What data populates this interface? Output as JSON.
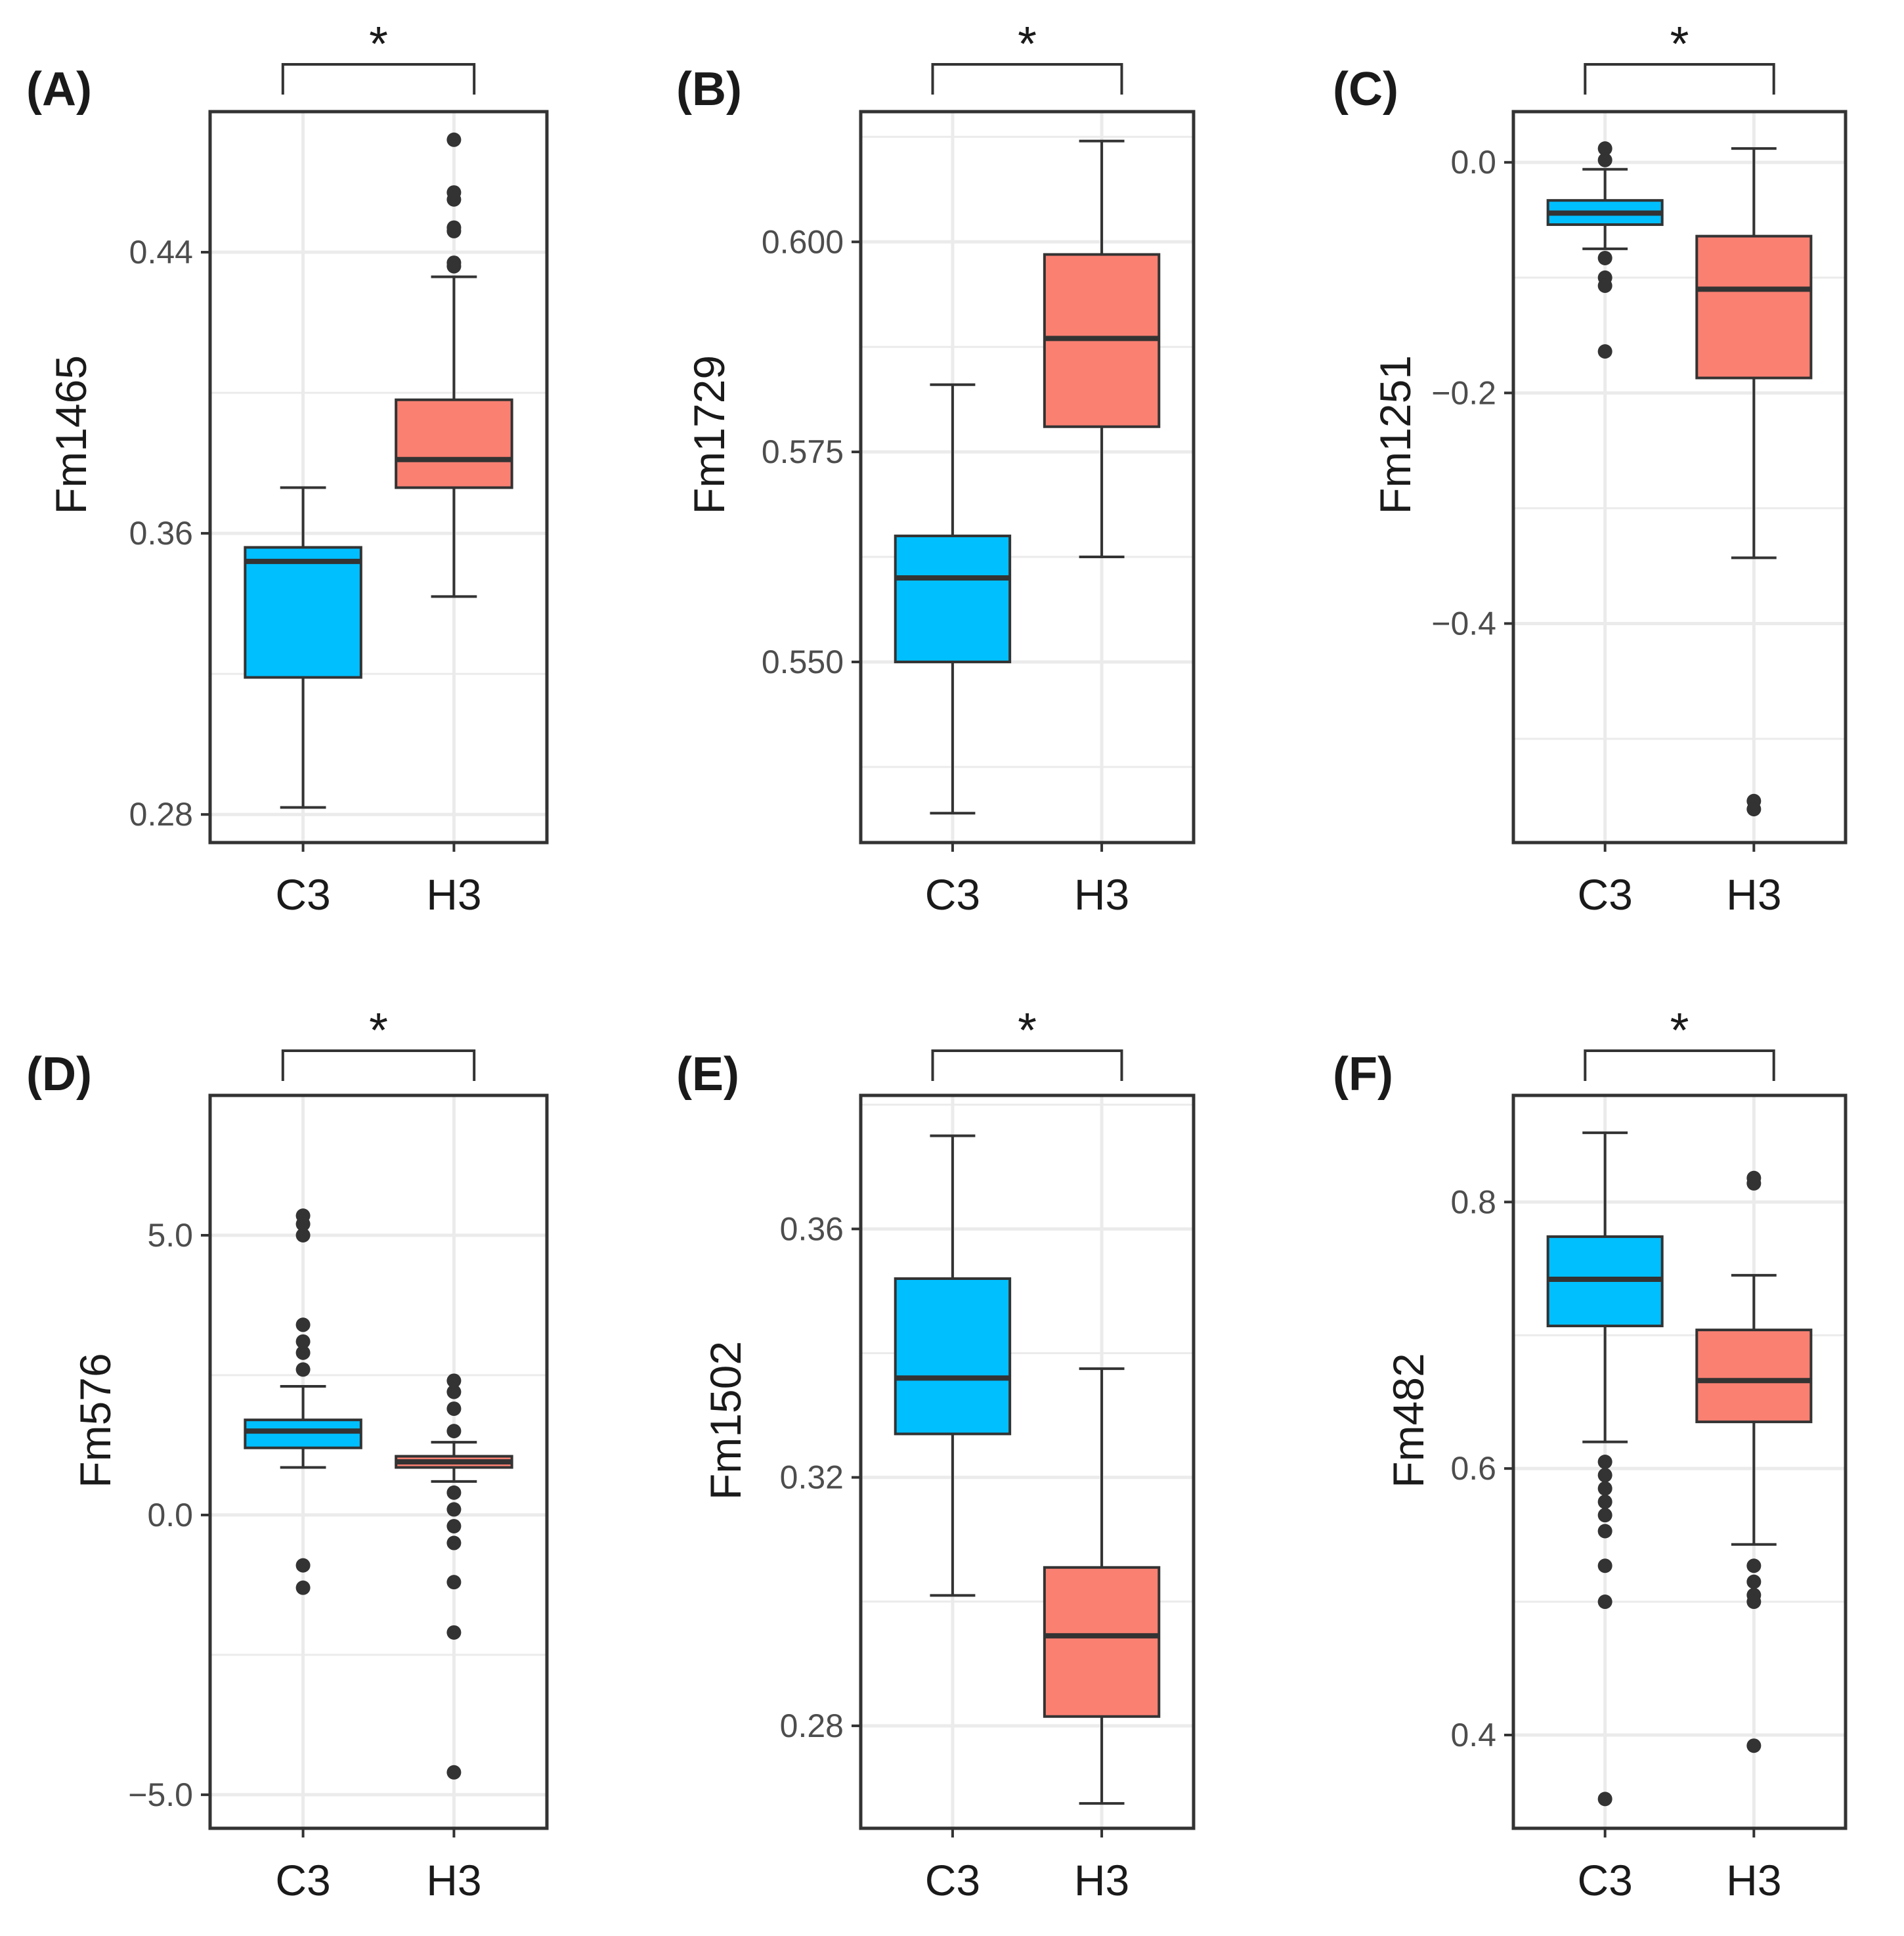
{
  "chart_data": [
    {
      "type": "box",
      "panel": "(A)",
      "ylabel": "Fm1465",
      "categories": [
        "C3",
        "H3"
      ],
      "ylim": [
        0.272,
        0.48
      ],
      "ticks": [
        0.28,
        0.36,
        0.44
      ],
      "tick_labels": [
        "0.28",
        "0.36",
        "0.44"
      ],
      "significance": "*",
      "boxes": [
        {
          "name": "C3",
          "whisker_low": 0.282,
          "q1": 0.319,
          "median": 0.352,
          "q3": 0.356,
          "whisker_high": 0.373,
          "outliers": []
        },
        {
          "name": "H3",
          "whisker_low": 0.342,
          "q1": 0.373,
          "median": 0.381,
          "q3": 0.398,
          "whisker_high": 0.433,
          "outliers": [
            0.436,
            0.437,
            0.446,
            0.447,
            0.455,
            0.457,
            0.472
          ]
        }
      ]
    },
    {
      "type": "box",
      "panel": "(B)",
      "ylabel": "Fm1729",
      "categories": [
        "C3",
        "H3"
      ],
      "ylim": [
        0.5285,
        0.6155
      ],
      "ticks": [
        0.55,
        0.575,
        0.6
      ],
      "tick_labels": [
        "0.550",
        "0.575",
        "0.600"
      ],
      "significance": "*",
      "boxes": [
        {
          "name": "C3",
          "whisker_low": 0.532,
          "q1": 0.55,
          "median": 0.56,
          "q3": 0.565,
          "whisker_high": 0.583,
          "outliers": []
        },
        {
          "name": "H3",
          "whisker_low": 0.5625,
          "q1": 0.578,
          "median": 0.5885,
          "q3": 0.5985,
          "whisker_high": 0.612,
          "outliers": []
        }
      ]
    },
    {
      "type": "box",
      "panel": "(C)",
      "ylabel": "Fm1251",
      "categories": [
        "C3",
        "H3"
      ],
      "ylim": [
        -0.59,
        0.044
      ],
      "ticks": [
        -0.4,
        -0.2,
        0.0
      ],
      "tick_labels": [
        "−0.4",
        "−0.2",
        "0.0"
      ],
      "significance": "*",
      "boxes": [
        {
          "name": "C3",
          "whisker_low": -0.075,
          "q1": -0.054,
          "median": -0.044,
          "q3": -0.033,
          "whisker_high": -0.006,
          "outliers": [
            0.002,
            0.012,
            -0.083,
            -0.1,
            -0.107,
            -0.164
          ]
        },
        {
          "name": "H3",
          "whisker_low": -0.343,
          "q1": -0.187,
          "median": -0.11,
          "q3": -0.064,
          "whisker_high": 0.012,
          "outliers": [
            -0.554,
            -0.561
          ]
        }
      ]
    },
    {
      "type": "box",
      "panel": "(D)",
      "ylabel": "Fm576",
      "categories": [
        "C3",
        "H3"
      ],
      "ylim": [
        -5.6,
        7.5
      ],
      "ticks": [
        -5.0,
        0.0,
        5.0
      ],
      "tick_labels": [
        "−5.0",
        "0.0",
        "5.0"
      ],
      "significance": "*",
      "boxes": [
        {
          "name": "C3",
          "whisker_low": 0.85,
          "q1": 1.2,
          "median": 1.5,
          "q3": 1.7,
          "whisker_high": 2.3,
          "outliers": [
            2.6,
            2.9,
            3.1,
            3.4,
            5.0,
            5.2,
            5.35,
            -0.9,
            -1.3
          ]
        },
        {
          "name": "H3",
          "whisker_low": 0.6,
          "q1": 0.85,
          "median": 0.95,
          "q3": 1.05,
          "whisker_high": 1.3,
          "outliers": [
            1.5,
            1.9,
            2.2,
            2.4,
            0.4,
            0.1,
            -0.2,
            -0.5,
            -1.2,
            -2.1,
            -4.6
          ]
        }
      ]
    },
    {
      "type": "box",
      "panel": "(E)",
      "ylabel": "Fm1502",
      "categories": [
        "C3",
        "H3"
      ],
      "ylim": [
        0.2635,
        0.3815
      ],
      "ticks": [
        0.28,
        0.32,
        0.36
      ],
      "tick_labels": [
        "0.28",
        "0.32",
        "0.36"
      ],
      "significance": "*",
      "boxes": [
        {
          "name": "C3",
          "whisker_low": 0.301,
          "q1": 0.327,
          "median": 0.336,
          "q3": 0.352,
          "whisker_high": 0.375,
          "outliers": []
        },
        {
          "name": "H3",
          "whisker_low": 0.2675,
          "q1": 0.2815,
          "median": 0.2945,
          "q3": 0.3055,
          "whisker_high": 0.3375,
          "outliers": []
        }
      ]
    },
    {
      "type": "box",
      "panel": "(F)",
      "ylabel": "Fm482",
      "categories": [
        "C3",
        "H3"
      ],
      "ylim": [
        0.33,
        0.88
      ],
      "ticks": [
        0.4,
        0.6,
        0.8
      ],
      "tick_labels": [
        "0.4",
        "0.6",
        "0.8"
      ],
      "significance": "*",
      "boxes": [
        {
          "name": "C3",
          "whisker_low": 0.62,
          "q1": 0.707,
          "median": 0.742,
          "q3": 0.774,
          "whisker_high": 0.852,
          "outliers": [
            0.605,
            0.595,
            0.585,
            0.575,
            0.565,
            0.553,
            0.527,
            0.5,
            0.352
          ]
        },
        {
          "name": "H3",
          "whisker_low": 0.543,
          "q1": 0.635,
          "median": 0.666,
          "q3": 0.704,
          "whisker_high": 0.745,
          "outliers": [
            0.814,
            0.818,
            0.527,
            0.515,
            0.505,
            0.5,
            0.392
          ]
        }
      ]
    }
  ],
  "colors": {
    "C3": "#00bfff",
    "H3": "#fa8072",
    "line": "#333333",
    "grid": "#ebebeb",
    "panel_border": "#333333"
  }
}
